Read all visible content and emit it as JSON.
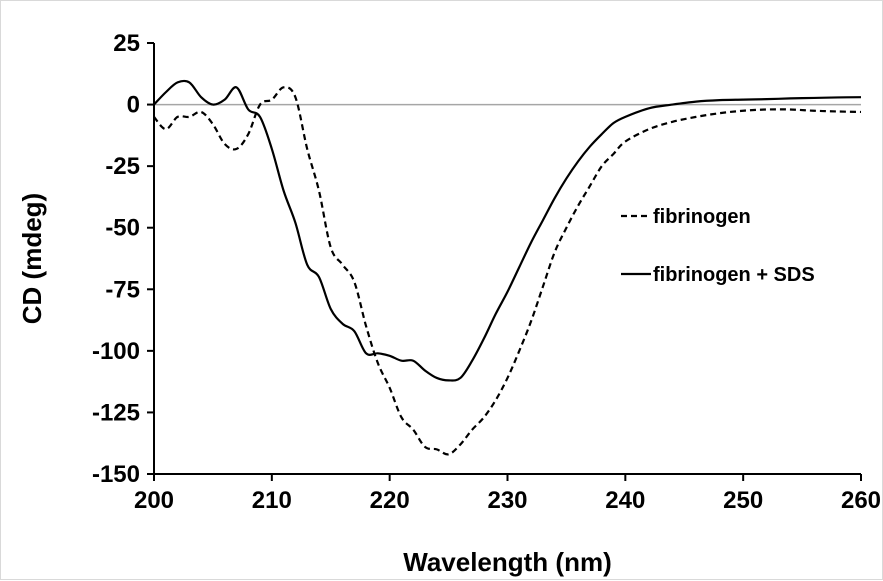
{
  "chart_data": {
    "type": "line",
    "title": "",
    "xlabel": "Wavelength (nm)",
    "ylabel": "CD (mdeg)",
    "xlim": [
      200,
      260
    ],
    "ylim": [
      -150,
      25
    ],
    "x_ticks": [
      "200",
      "210",
      "220",
      "230",
      "240",
      "250",
      "260"
    ],
    "y_ticks": [
      "25",
      "0",
      "-25",
      "-50",
      "-75",
      "-100",
      "-125",
      "-150"
    ],
    "grid": false,
    "legend_position": "right",
    "series": [
      {
        "name": "fibrinogen",
        "style": "dashed",
        "color": "#000000",
        "x": [
          200,
          201,
          202,
          203,
          204,
          205,
          206,
          207,
          208,
          209,
          210,
          211,
          212,
          213,
          214,
          215,
          216,
          217,
          218,
          219,
          220,
          221,
          222,
          223,
          224,
          225,
          226,
          227,
          228,
          229,
          230,
          231,
          232,
          233,
          234,
          235,
          236,
          237,
          238,
          239,
          240,
          242,
          244,
          246,
          248,
          250,
          252,
          254,
          256,
          258,
          260
        ],
        "y": [
          -5,
          -10,
          -5,
          -5,
          -3,
          -8,
          -16,
          -18,
          -12,
          0,
          2,
          7,
          3,
          -18,
          -35,
          -58,
          -65,
          -72,
          -90,
          -105,
          -115,
          -127,
          -132,
          -139,
          -140,
          -142,
          -138,
          -132,
          -127,
          -120,
          -111,
          -100,
          -88,
          -74,
          -60,
          -50,
          -41,
          -33,
          -25,
          -20,
          -15,
          -10,
          -7,
          -5,
          -3.5,
          -2.5,
          -2,
          -2,
          -2.5,
          -2.8,
          -3
        ]
      },
      {
        "name": "fibrinogen + SDS",
        "style": "solid",
        "color": "#000000",
        "x": [
          200,
          201,
          202,
          203,
          204,
          205,
          206,
          207,
          208,
          209,
          210,
          211,
          212,
          213,
          214,
          215,
          216,
          217,
          218,
          219,
          220,
          221,
          222,
          223,
          224,
          225,
          226,
          227,
          228,
          229,
          230,
          231,
          232,
          233,
          234,
          235,
          236,
          237,
          238,
          239,
          240,
          242,
          244,
          246,
          248,
          250,
          252,
          254,
          256,
          258,
          260
        ],
        "y": [
          0,
          5,
          9,
          9,
          3,
          0,
          2,
          7,
          -2,
          -5,
          -18,
          -35,
          -48,
          -65,
          -70,
          -83,
          -89,
          -92,
          -101,
          -101,
          -102,
          -104,
          -104,
          -108,
          -111,
          -112,
          -111,
          -104,
          -95,
          -85,
          -76,
          -66,
          -56,
          -47,
          -38,
          -30,
          -23,
          -17,
          -12,
          -7.5,
          -5,
          -1.5,
          0,
          1.2,
          1.8,
          2,
          2.2,
          2.5,
          2.7,
          2.9,
          3
        ]
      }
    ]
  }
}
